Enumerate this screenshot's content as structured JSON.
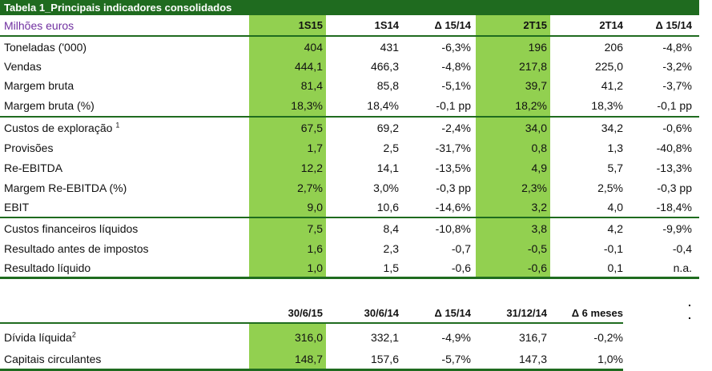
{
  "table1": {
    "title": "Tabela 1_Principais indicadores consolidados",
    "unit_label": "Milhões euros",
    "headers": [
      "1S15",
      "1S14",
      "Δ 15/14",
      "2T15",
      "2T14",
      "Δ 15/14"
    ],
    "rows": [
      {
        "label": "Toneladas ('000)",
        "note": "",
        "values": [
          "404",
          "431",
          "-6,3%",
          "196",
          "206",
          "-4,8%"
        ]
      },
      {
        "label": "Vendas",
        "note": "",
        "values": [
          "444,1",
          "466,3",
          "-4,8%",
          "217,8",
          "225,0",
          "-3,2%"
        ]
      },
      {
        "label": "Margem bruta",
        "note": "",
        "values": [
          "81,4",
          "85,8",
          "-5,1%",
          "39,7",
          "41,2",
          "-3,7%"
        ]
      },
      {
        "label": "Margem bruta (%)",
        "note": "",
        "values": [
          "18,3%",
          "18,4%",
          "-0,1 pp",
          "18,2%",
          "18,3%",
          "-0,1 pp"
        ]
      },
      {
        "label": "Custos de exploração",
        "note": "1",
        "values": [
          "67,5",
          "69,2",
          "-2,4%",
          "34,0",
          "34,2",
          "-0,6%"
        ]
      },
      {
        "label": "Provisões",
        "note": "",
        "values": [
          "1,7",
          "2,5",
          "-31,7%",
          "0,8",
          "1,3",
          "-40,8%"
        ]
      },
      {
        "label": "Re-EBITDA",
        "note": "",
        "values": [
          "12,2",
          "14,1",
          "-13,5%",
          "4,9",
          "5,7",
          "-13,3%"
        ]
      },
      {
        "label": "Margem Re-EBITDA (%)",
        "note": "",
        "values": [
          "2,7%",
          "3,0%",
          "-0,3 pp",
          "2,3%",
          "2,5%",
          "-0,3 pp"
        ]
      },
      {
        "label": "EBIT",
        "note": "",
        "values": [
          "9,0",
          "10,6",
          "-14,6%",
          "3,2",
          "4,0",
          "-18,4%"
        ]
      },
      {
        "label": "Custos financeiros líquidos",
        "note": "",
        "values": [
          "7,5",
          "8,4",
          "-10,8%",
          "3,8",
          "4,2",
          "-9,9%"
        ]
      },
      {
        "label": "Resultado antes de impostos",
        "note": "",
        "values": [
          "1,6",
          "2,3",
          "-0,7",
          "-0,5",
          "-0,1",
          "-0,4"
        ]
      },
      {
        "label": "Resultado líquido",
        "note": "",
        "values": [
          "1,0",
          "1,5",
          "-0,6",
          "-0,6",
          "0,1",
          "n.a."
        ]
      }
    ]
  },
  "table2": {
    "headers": [
      "30/6/15",
      "30/6/14",
      "Δ 15/14",
      "31/12/14",
      "Δ 6 meses"
    ],
    "rows": [
      {
        "label": "Dívida líquida",
        "note": "2",
        "values": [
          "316,0",
          "332,1",
          "-4,9%",
          "316,7",
          "-0,2%"
        ]
      },
      {
        "label": "Capitais circulantes",
        "note": "",
        "values": [
          "148,7",
          "157,6",
          "-5,7%",
          "147,3",
          "1,0%"
        ]
      }
    ]
  }
}
